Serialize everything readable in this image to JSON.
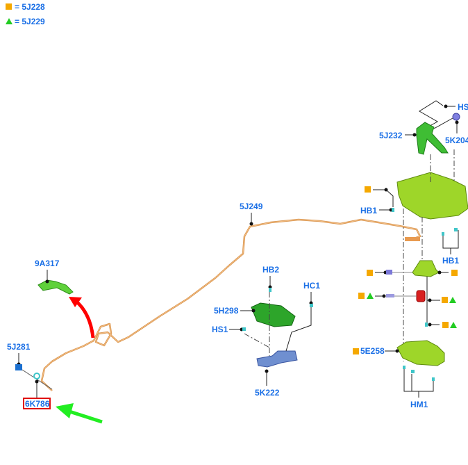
{
  "legend": [
    {
      "symbol": "orange-square",
      "text": "= 5J228",
      "color": "#f5a800"
    },
    {
      "symbol": "green-triangle",
      "text": "= 5J229",
      "color": "#22cc22"
    }
  ],
  "labels": {
    "l5J249": "5J249",
    "l9A317": "9A317",
    "l5J281": "5J281",
    "l6K786": "6K786",
    "lHB2": "HB2",
    "lHC1": "HC1",
    "l5H298": "5H298",
    "lHS1": "HS1",
    "l5K222": "5K222",
    "lHS": "HS",
    "l5J232": "5J232",
    "l5K204": "5K204",
    "lHB1a": "HB1",
    "lHB1b": "HB1",
    "l5E258": "5E258",
    "lHM1": "HM1"
  },
  "highlighted_part": "6K786",
  "colors": {
    "label": "#1a6fe6",
    "highlight_box": "#e01010",
    "arrow_red": "#ff0000",
    "arrow_green": "#22ee22",
    "harness": "#d8924a"
  }
}
